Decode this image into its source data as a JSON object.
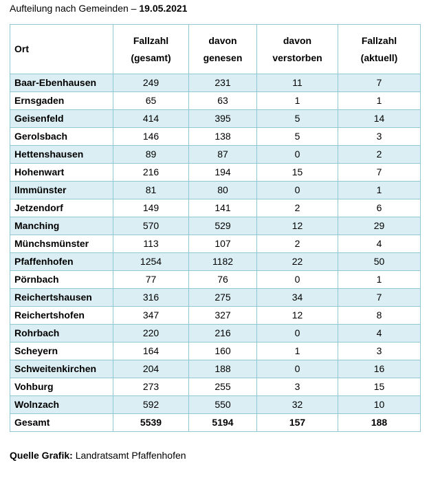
{
  "title": {
    "prefix": "Aufteilung nach Gemeinden – ",
    "date": "19.05.2021"
  },
  "table": {
    "headers": {
      "ort": "Ort",
      "gesamt": [
        "Fallzahl",
        "(gesamt)"
      ],
      "genesen": [
        "davon",
        "genesen"
      ],
      "verstorben": [
        "davon",
        "verstorben"
      ],
      "aktuell": [
        "Fallzahl",
        "(aktuell)"
      ]
    },
    "rows": [
      {
        "ort": "Baar-Ebenhausen",
        "gesamt": "249",
        "genesen": "231",
        "verstorben": "11",
        "aktuell": "7"
      },
      {
        "ort": "Ernsgaden",
        "gesamt": "65",
        "genesen": "63",
        "verstorben": "1",
        "aktuell": "1"
      },
      {
        "ort": "Geisenfeld",
        "gesamt": "414",
        "genesen": "395",
        "verstorben": "5",
        "aktuell": "14"
      },
      {
        "ort": "Gerolsbach",
        "gesamt": "146",
        "genesen": "138",
        "verstorben": "5",
        "aktuell": "3"
      },
      {
        "ort": "Hettenshausen",
        "gesamt": "89",
        "genesen": "87",
        "verstorben": "0",
        "aktuell": "2"
      },
      {
        "ort": "Hohenwart",
        "gesamt": "216",
        "genesen": "194",
        "verstorben": "15",
        "aktuell": "7"
      },
      {
        "ort": "Ilmmünster",
        "gesamt": "81",
        "genesen": "80",
        "verstorben": "0",
        "aktuell": "1"
      },
      {
        "ort": "Jetzendorf",
        "gesamt": "149",
        "genesen": "141",
        "verstorben": "2",
        "aktuell": "6"
      },
      {
        "ort": "Manching",
        "gesamt": "570",
        "genesen": "529",
        "verstorben": "12",
        "aktuell": "29"
      },
      {
        "ort": "Münchsmünster",
        "gesamt": "113",
        "genesen": "107",
        "verstorben": "2",
        "aktuell": "4"
      },
      {
        "ort": "Pfaffenhofen",
        "gesamt": "1254",
        "genesen": "1182",
        "verstorben": "22",
        "aktuell": "50"
      },
      {
        "ort": "Pörnbach",
        "gesamt": "77",
        "genesen": "76",
        "verstorben": "0",
        "aktuell": "1"
      },
      {
        "ort": "Reichertshausen",
        "gesamt": "316",
        "genesen": "275",
        "verstorben": "34",
        "aktuell": "7"
      },
      {
        "ort": "Reichertshofen",
        "gesamt": "347",
        "genesen": "327",
        "verstorben": "12",
        "aktuell": "8"
      },
      {
        "ort": "Rohrbach",
        "gesamt": "220",
        "genesen": "216",
        "verstorben": "0",
        "aktuell": "4"
      },
      {
        "ort": "Scheyern",
        "gesamt": "164",
        "genesen": "160",
        "verstorben": "1",
        "aktuell": "3"
      },
      {
        "ort": "Schweitenkirchen",
        "gesamt": "204",
        "genesen": "188",
        "verstorben": "0",
        "aktuell": "16"
      },
      {
        "ort": "Vohburg",
        "gesamt": "273",
        "genesen": "255",
        "verstorben": "3",
        "aktuell": "15"
      },
      {
        "ort": "Wolnzach",
        "gesamt": "592",
        "genesen": "550",
        "verstorben": "32",
        "aktuell": "10"
      }
    ],
    "total": {
      "ort": "Gesamt",
      "gesamt": "5539",
      "genesen": "5194",
      "verstorben": "157",
      "aktuell": "188"
    }
  },
  "source": {
    "label": "Quelle Grafik:",
    "text": " Landratsamt Pfaffenhofen"
  },
  "colors": {
    "row_stripe": "#daeef3",
    "border": "#8fc8d4"
  }
}
